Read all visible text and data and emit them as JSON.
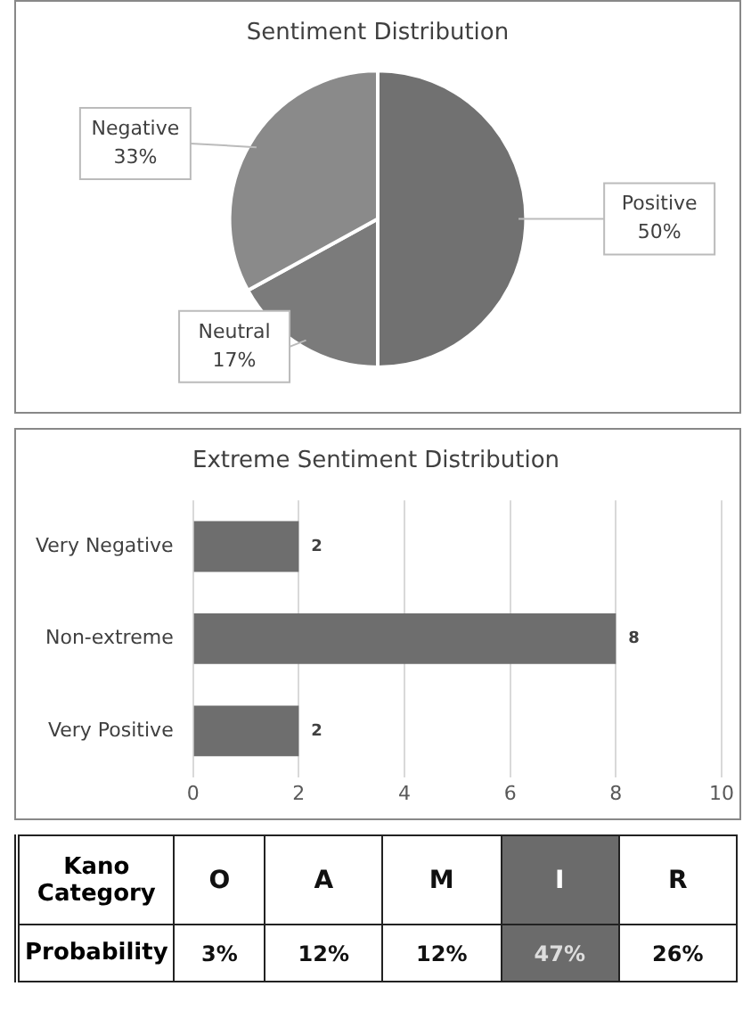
{
  "chart_data": [
    {
      "type": "pie",
      "title": "Sentiment Distribution",
      "categories": [
        "Positive",
        "Neutral",
        "Negative"
      ],
      "values": [
        50,
        17,
        33
      ],
      "colors": [
        "#717171",
        "#7b7b7b",
        "#8a8a8a"
      ],
      "value_labels": [
        "50%",
        "17%",
        "33%"
      ],
      "legend": false
    },
    {
      "type": "bar",
      "orientation": "horizontal",
      "title": "Extreme Sentiment Distribution",
      "categories": [
        "Very Negative",
        "Non-extreme",
        "Very Positive"
      ],
      "values": [
        2,
        8,
        2
      ],
      "color": "#6e6e6e",
      "xlim": [
        0,
        10
      ],
      "xticks": [
        0,
        2,
        4,
        6,
        8,
        10
      ],
      "grid": "x",
      "data_labels": true,
      "legend": false
    },
    {
      "type": "other",
      "xlabel": "Kano Category",
      "ylabel": "Probability",
      "categories": [
        "O",
        "A",
        "M",
        "I",
        "R"
      ],
      "values": [
        3,
        12,
        12,
        47,
        26
      ],
      "value_labels": [
        "3%",
        "12%",
        "12%",
        "47%",
        "26%"
      ],
      "colors": [
        "#ffffff",
        "#ffffff",
        "#ffffff",
        "#6b6b6b",
        "#ffffff"
      ]
    }
  ]
}
